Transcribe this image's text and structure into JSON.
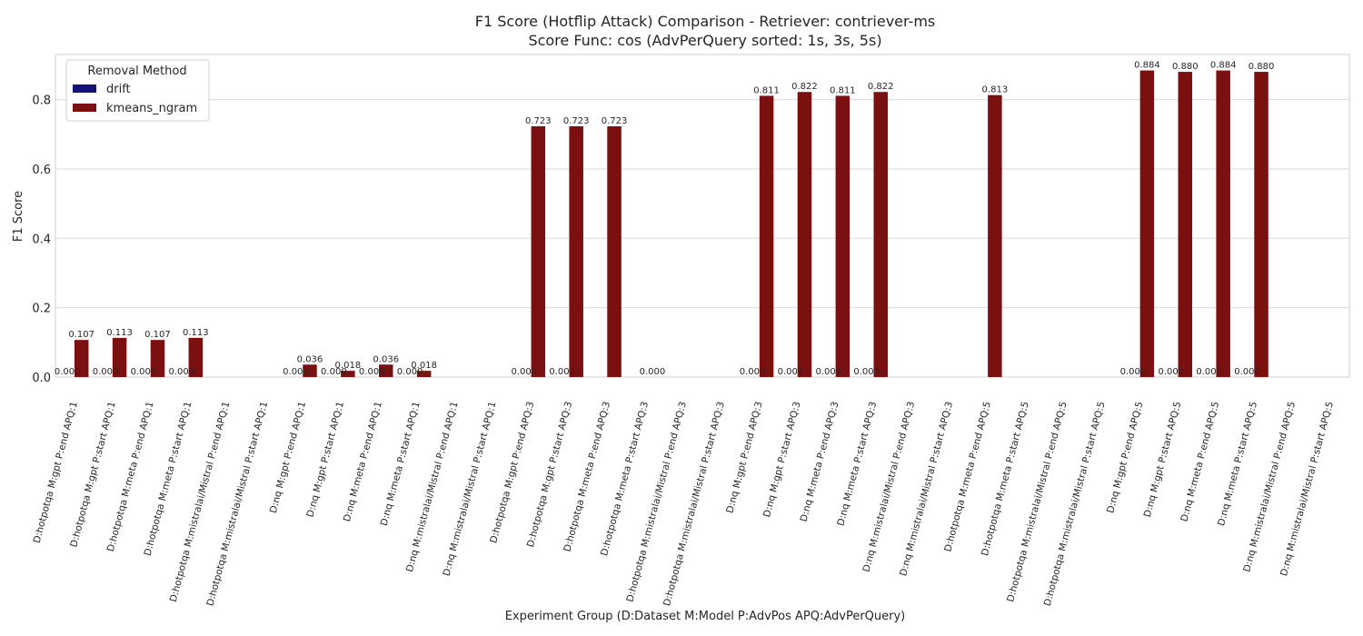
{
  "chart_data": {
    "type": "bar",
    "title_line1": "F1 Score (Hotflip Attack) Comparison - Retriever: contriever-ms",
    "title_line2": "Score Func: cos (AdvPerQuery sorted: 1s, 3s, 5s)",
    "xlabel": "Experiment Group (D:Dataset M:Model P:AdvPos APQ:AdvPerQuery)",
    "ylabel": "F1 Score",
    "ylim": [
      0,
      0.93
    ],
    "yticks": [
      0.0,
      0.2,
      0.4,
      0.6,
      0.8
    ],
    "ytick_labels": [
      "0.0",
      "0.2",
      "0.4",
      "0.6",
      "0.8"
    ],
    "grid": true,
    "legend": {
      "title": "Removal Method",
      "placement": "top-left"
    },
    "categories": [
      "D:hotpotqa M:gpt P:end APQ:1",
      "D:hotpotqa M:gpt P:start APQ:1",
      "D:hotpotqa M:meta P:end APQ:1",
      "D:hotpotqa M:meta P:start APQ:1",
      "D:hotpotqa M:mistralai/Mistral P:end APQ:1",
      "D:hotpotqa M:mistralai/Mistral P:start APQ:1",
      "D:nq M:gpt P:end APQ:1",
      "D:nq M:gpt P:start APQ:1",
      "D:nq M:meta P:end APQ:1",
      "D:nq M:meta P:start APQ:1",
      "D:nq M:mistralai/Mistral P:end APQ:1",
      "D:nq M:mistralai/Mistral P:start APQ:1",
      "D:hotpotqa M:gpt P:end APQ:3",
      "D:hotpotqa M:gpt P:start APQ:3",
      "D:hotpotqa M:meta P:end APQ:3",
      "D:hotpotqa M:meta P:start APQ:3",
      "D:hotpotqa M:mistralai/Mistral P:end APQ:3",
      "D:hotpotqa M:mistralai/Mistral P:start APQ:3",
      "D:nq M:gpt P:end APQ:3",
      "D:nq M:gpt P:start APQ:3",
      "D:nq M:meta P:end APQ:3",
      "D:nq M:meta P:start APQ:3",
      "D:nq M:mistralai/Mistral P:end APQ:3",
      "D:nq M:mistralai/Mistral P:start APQ:3",
      "D:hotpotqa M:meta P:end APQ:5",
      "D:hotpotqa M:meta P:start APQ:5",
      "D:hotpotqa M:mistralai/Mistral P:end APQ:5",
      "D:hotpotqa M:mistralai/Mistral P:start APQ:5",
      "D:nq M:gpt P:end APQ:5",
      "D:nq M:gpt P:start APQ:5",
      "D:nq M:meta P:end APQ:5",
      "D:nq M:meta P:start APQ:5",
      "D:nq M:mistralai/Mistral P:end APQ:5",
      "D:nq M:mistralai/Mistral P:start APQ:5"
    ],
    "series": [
      {
        "name": "drift",
        "color": "#12127a",
        "values": [
          0,
          0,
          0,
          0,
          null,
          null,
          0,
          0,
          0,
          0,
          null,
          null,
          0,
          0,
          null,
          null,
          null,
          null,
          0,
          0,
          0,
          0,
          null,
          null,
          null,
          null,
          null,
          null,
          0,
          0,
          0,
          0,
          null,
          null
        ],
        "labels": [
          "0.000",
          "0.000",
          "0.000",
          "0.000",
          null,
          null,
          "0.000",
          "0.000",
          "0.000",
          "0.000",
          null,
          null,
          "0.000",
          "0.000",
          null,
          null,
          null,
          null,
          "0.000",
          "0.000",
          "0.000",
          "0.000",
          null,
          null,
          null,
          null,
          null,
          null,
          "0.000",
          "0.000",
          "0.000",
          "0.000",
          null,
          null
        ]
      },
      {
        "name": "kmeans_ngram",
        "color": "#7a1010",
        "values": [
          0.107,
          0.113,
          0.107,
          0.113,
          null,
          null,
          0.036,
          0.018,
          0.036,
          0.018,
          null,
          null,
          0.723,
          0.723,
          0.723,
          0.0,
          null,
          null,
          0.811,
          0.822,
          0.811,
          0.822,
          null,
          null,
          0.813,
          null,
          null,
          null,
          0.884,
          0.88,
          0.884,
          0.88,
          null,
          null
        ],
        "labels": [
          "0.107",
          "0.113",
          "0.107",
          "0.113",
          null,
          null,
          "0.036",
          "0.018",
          "0.036",
          "0.018",
          null,
          null,
          "0.723",
          "0.723",
          "0.723",
          "0.000",
          null,
          null,
          "0.811",
          "0.822",
          "0.811",
          "0.822",
          null,
          null,
          "0.813",
          null,
          null,
          null,
          "0.884",
          "0.880",
          "0.884",
          "0.880",
          null,
          null
        ]
      }
    ]
  }
}
